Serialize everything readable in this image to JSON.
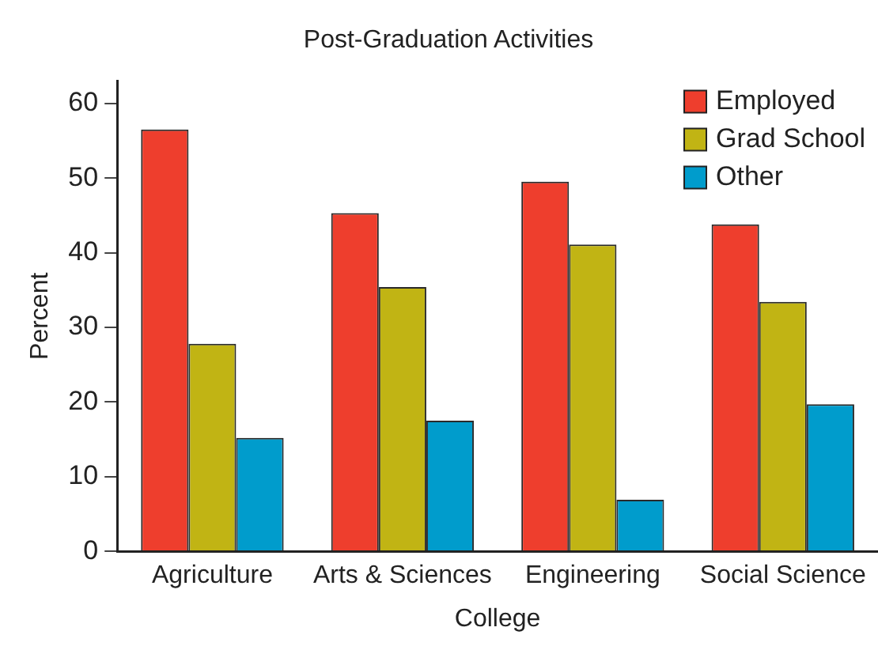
{
  "chart_data": {
    "type": "bar",
    "title": "Post-Graduation Activities",
    "xlabel": "College",
    "ylabel": "Percent",
    "categories": [
      "Agriculture",
      "Arts & Sciences",
      "Engineering",
      "Social Science"
    ],
    "series": [
      {
        "name": "Employed",
        "color": "#ee3e2d",
        "values": [
          56.5,
          45.3,
          49.5,
          43.8
        ]
      },
      {
        "name": "Grad School",
        "color": "#c1b414",
        "values": [
          27.8,
          35.4,
          41.1,
          33.4
        ]
      },
      {
        "name": "Other",
        "color": "#009ccc",
        "values": [
          15.2,
          17.5,
          6.9,
          19.7
        ]
      }
    ],
    "ylim": [
      0,
      63
    ],
    "yticks": [
      0,
      10,
      20,
      30,
      40,
      50,
      60
    ],
    "grid": false,
    "legend": "top right"
  }
}
